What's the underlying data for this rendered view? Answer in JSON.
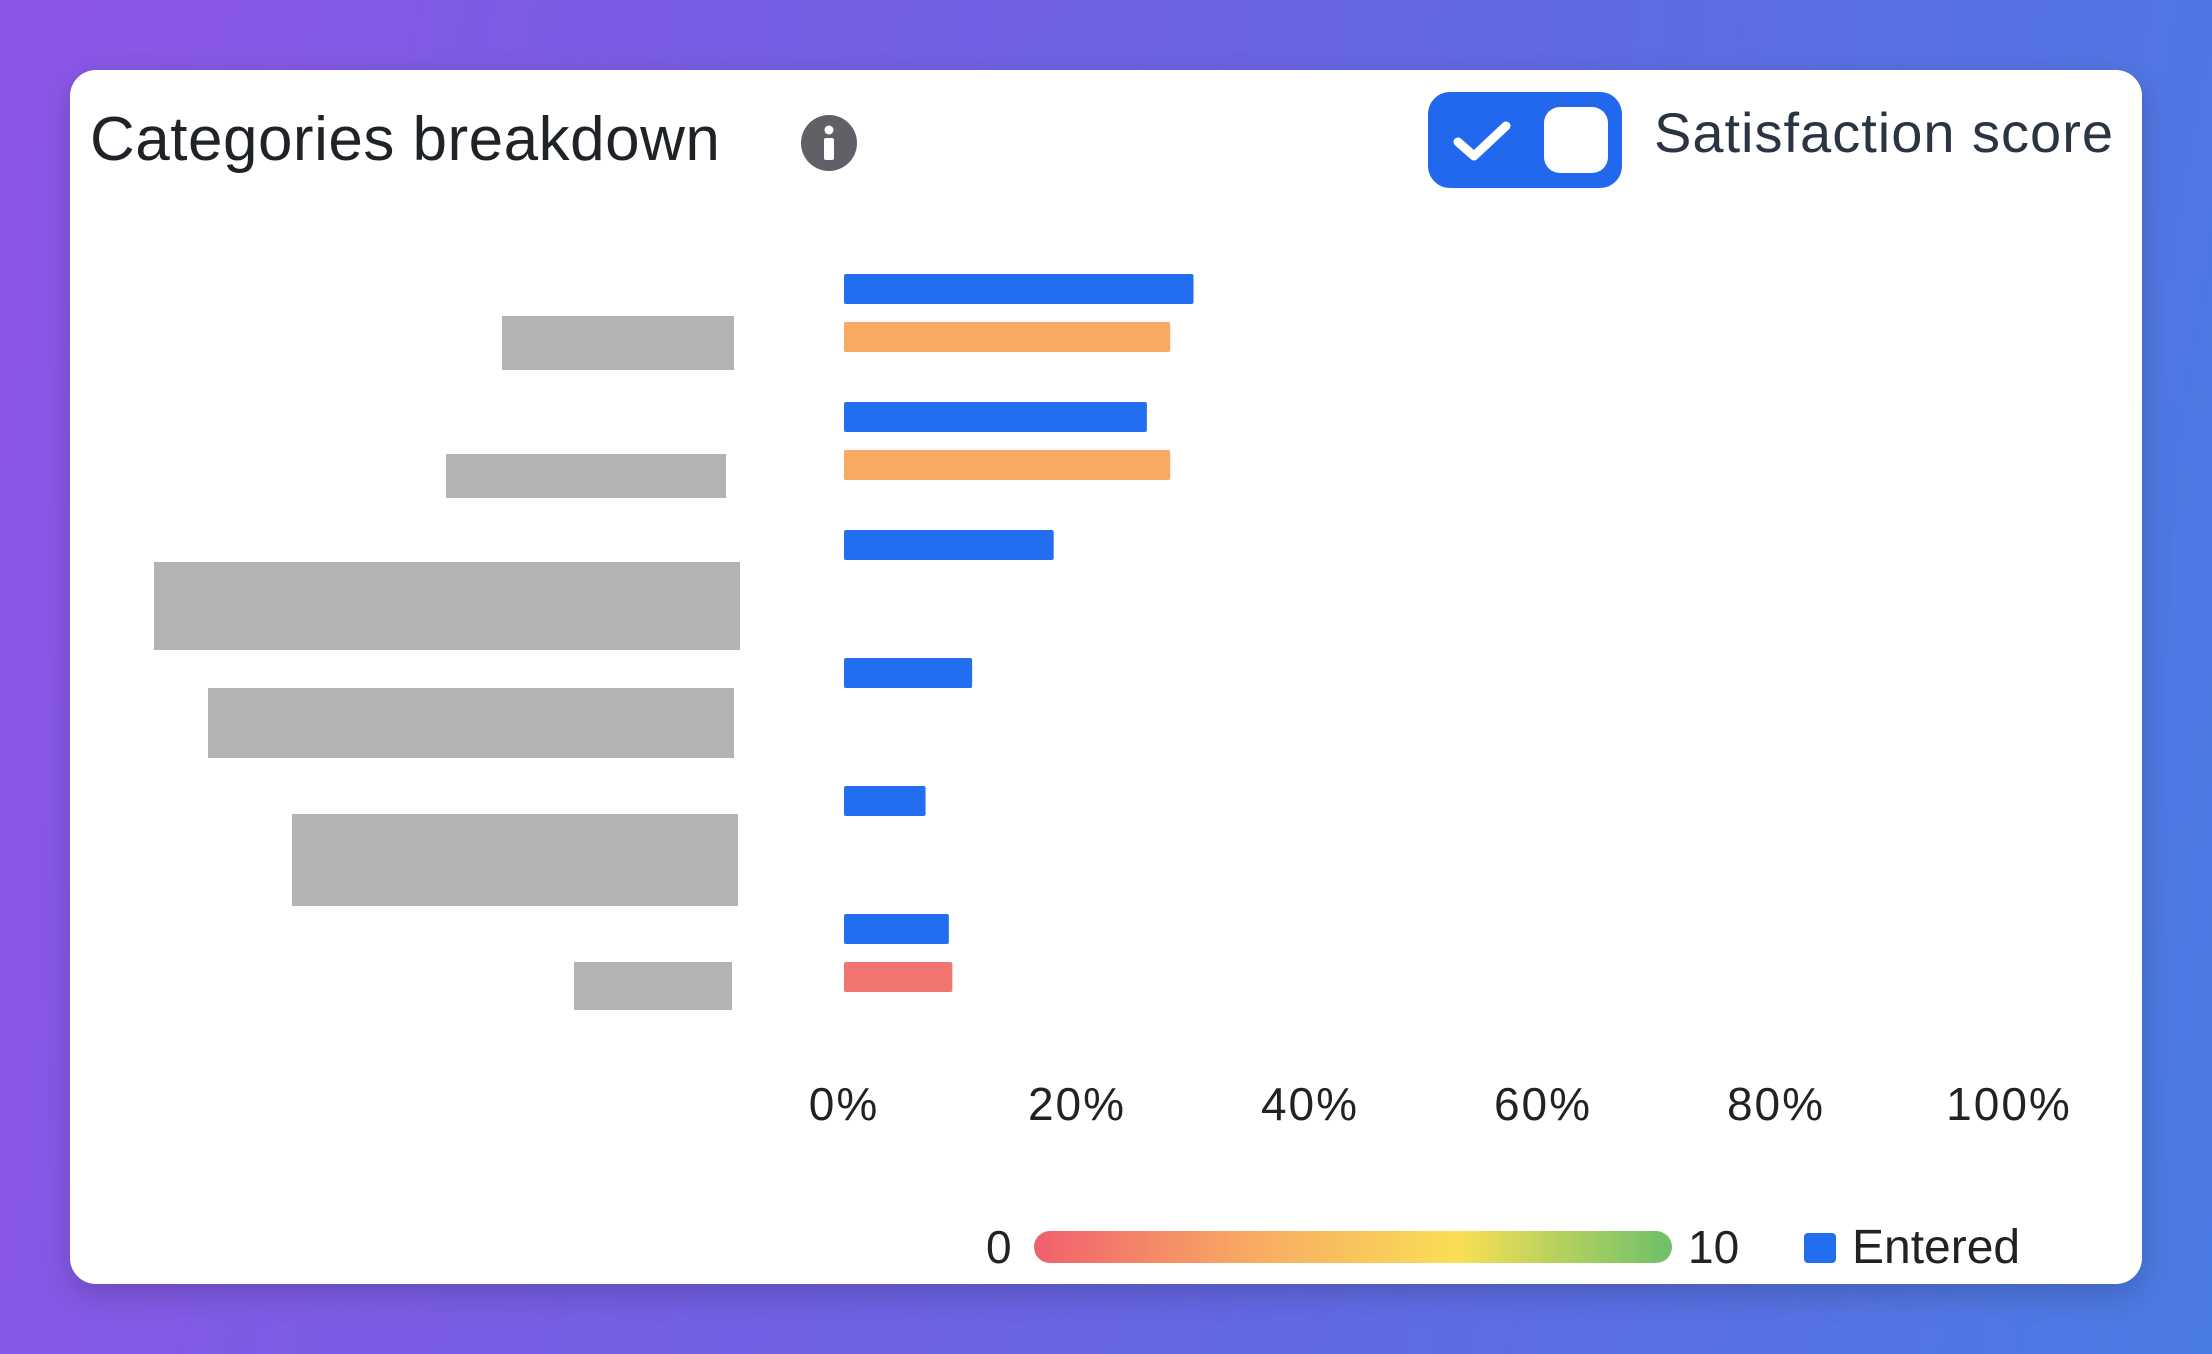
{
  "header": {
    "title": "Categories breakdown",
    "info_icon": "info-circle-icon",
    "toggle": {
      "on": true,
      "check_icon": "checkmark-icon"
    },
    "toggle_label": "Satisfaction score"
  },
  "colors": {
    "accent": "#2168ee",
    "entered": "#236ef0",
    "orange": "#f8a963",
    "red": "#f07570",
    "redacted": "#b3b3b3",
    "scale": [
      "#f0606e",
      "#f8a963",
      "#f9df55",
      "#6cc06a"
    ]
  },
  "chart_data": {
    "type": "bar",
    "orientation": "horizontal",
    "categories": [
      "",
      "",
      "",
      "",
      "",
      ""
    ],
    "category_labels_redacted": true,
    "series": [
      {
        "name": "Entered",
        "values": [
          30,
          26,
          18,
          11,
          7,
          9
        ]
      },
      {
        "values": [
          28,
          28,
          null,
          null,
          null,
          9.3
        ],
        "colors": [
          "#f8a963",
          "#f8a963",
          null,
          null,
          null,
          "#f07570"
        ]
      }
    ],
    "xlim": [
      0,
      100
    ],
    "x_ticks": [
      "0%",
      "20%",
      "40%",
      "60%",
      "80%",
      "100%"
    ],
    "x_tick_values": [
      0,
      20,
      40,
      60,
      80,
      100
    ],
    "grid": false
  },
  "legend": {
    "scale_min": "0",
    "scale_max": "10",
    "entered_label": "Entered"
  }
}
